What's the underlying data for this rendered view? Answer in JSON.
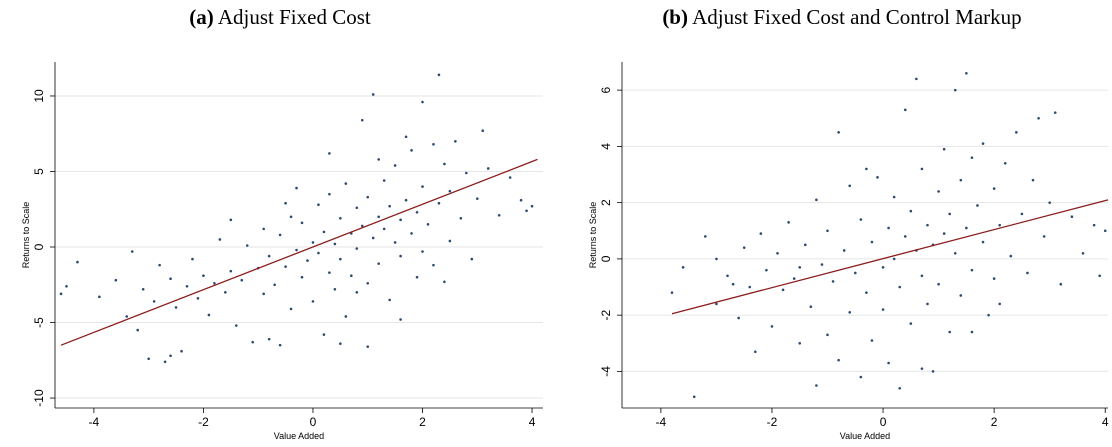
{
  "chart_data": [
    {
      "type": "scatter",
      "panel_label": "(a)",
      "title": "Adjust Fixed Cost",
      "x_label": "Value Added",
      "y_label": "Returns to Scale",
      "xlim": [
        -4.71,
        4.2
      ],
      "ylim": [
        -10.66,
        12.25
      ],
      "xticks": [
        -4,
        -2,
        0,
        2,
        4
      ],
      "yticks": [
        -10,
        -5,
        0,
        5,
        10
      ],
      "grid": true,
      "color": "#2c4a70",
      "x": [
        -4.6,
        -4.5,
        -4.3,
        -3.9,
        -3.6,
        -3.4,
        -3.2,
        -3.1,
        -3.0,
        -2.9,
        -2.8,
        -2.7,
        -2.6,
        -2.5,
        -2.4,
        -2.3,
        -2.2,
        -2.1,
        -2.0,
        -1.9,
        -1.8,
        -1.7,
        -1.6,
        -1.5,
        -1.4,
        -1.3,
        -1.2,
        -1.1,
        -1.0,
        -0.9,
        -0.9,
        -0.8,
        -0.7,
        -0.6,
        -0.6,
        -0.5,
        -0.4,
        -0.4,
        -0.3,
        -0.2,
        -0.2,
        -0.1,
        0.0,
        0.0,
        0.1,
        0.1,
        0.2,
        0.2,
        0.3,
        0.3,
        0.4,
        0.4,
        0.5,
        0.5,
        0.6,
        0.6,
        0.7,
        0.7,
        0.8,
        0.8,
        0.9,
        0.9,
        1.0,
        1.0,
        1.1,
        1.1,
        1.2,
        1.2,
        1.3,
        1.3,
        1.4,
        1.4,
        1.5,
        1.5,
        1.6,
        1.6,
        1.7,
        1.8,
        1.8,
        1.9,
        1.9,
        2.0,
        2.0,
        2.1,
        2.2,
        2.2,
        2.3,
        2.3,
        2.4,
        2.5,
        2.5,
        2.6,
        2.7,
        2.8,
        2.9,
        3.0,
        3.1,
        3.2,
        3.4,
        3.6,
        3.8,
        3.9,
        4.0,
        1.0,
        -0.8,
        0.5,
        1.6,
        -2.6,
        0.3,
        -0.3,
        1.2,
        2.0,
        -1.5,
        -3.3,
        0.8,
        -0.5,
        1.7,
        2.4
      ],
      "y": [
        -3.1,
        -2.6,
        -1.0,
        -3.3,
        -2.2,
        -4.6,
        -5.5,
        -2.8,
        -7.4,
        -3.6,
        -1.2,
        -7.6,
        -2.1,
        -4.0,
        -6.9,
        -2.6,
        -0.8,
        -3.4,
        -1.9,
        -4.5,
        -2.4,
        0.5,
        -3.0,
        -1.6,
        -5.2,
        -2.2,
        0.1,
        -6.3,
        -1.4,
        -3.1,
        1.2,
        -0.6,
        -2.5,
        -6.5,
        0.8,
        -1.3,
        -4.1,
        2.0,
        -0.2,
        -2.0,
        1.6,
        -0.9,
        0.3,
        -3.6,
        2.8,
        -0.4,
        -5.8,
        1.0,
        -1.7,
        3.5,
        0.2,
        -2.8,
        1.9,
        -0.8,
        4.2,
        -4.6,
        0.9,
        -1.9,
        2.6,
        -0.1,
        8.4,
        1.4,
        -2.4,
        3.3,
        0.6,
        10.1,
        2.0,
        -1.1,
        4.4,
        1.2,
        -3.5,
        2.7,
        0.3,
        5.4,
        1.8,
        -0.6,
        3.1,
        6.4,
        0.9,
        2.3,
        -2.0,
        4.0,
        9.6,
        1.5,
        6.8,
        -1.2,
        2.9,
        11.4,
        5.5,
        0.4,
        3.7,
        7.0,
        1.9,
        4.9,
        -0.8,
        3.2,
        7.7,
        5.2,
        2.1,
        4.6,
        3.1,
        2.4,
        2.7,
        -6.6,
        -6.1,
        -6.4,
        -4.8,
        -7.2,
        6.2,
        3.9,
        5.8,
        -0.3,
        1.8,
        -0.3,
        -3.0,
        2.9,
        7.3,
        -2.3
      ],
      "fit": {
        "color": "#8b1c1c",
        "x": [
          -4.6,
          4.1
        ],
        "y": [
          -6.5,
          5.8
        ]
      }
    },
    {
      "type": "scatter",
      "panel_label": "(b)",
      "title": "Adjust Fixed Cost and Control Markup",
      "x_label": "Value Added",
      "y_label": "Returns to Scale",
      "xlim": [
        -4.7,
        4.05
      ],
      "ylim": [
        -5.3,
        7.0
      ],
      "xticks": [
        -4,
        -2,
        0,
        2,
        4
      ],
      "yticks": [
        -4,
        -2,
        0,
        2,
        4,
        6
      ],
      "grid": true,
      "color": "#2c4a70",
      "x": [
        -3.8,
        -3.6,
        -3.4,
        -3.2,
        -3.0,
        -2.8,
        -2.6,
        -2.5,
        -2.4,
        -2.3,
        -2.2,
        -2.1,
        -2.0,
        -1.9,
        -1.8,
        -1.7,
        -1.6,
        -1.5,
        -1.4,
        -1.3,
        -1.2,
        -1.2,
        -1.1,
        -1.0,
        -1.0,
        -0.9,
        -0.8,
        -0.8,
        -0.7,
        -0.6,
        -0.6,
        -0.5,
        -0.4,
        -0.4,
        -0.3,
        -0.2,
        -0.2,
        -0.1,
        0.0,
        0.0,
        0.1,
        0.1,
        0.2,
        0.2,
        0.3,
        0.3,
        0.4,
        0.4,
        0.5,
        0.5,
        0.6,
        0.6,
        0.7,
        0.7,
        0.8,
        0.8,
        0.9,
        0.9,
        1.0,
        1.0,
        1.1,
        1.1,
        1.2,
        1.2,
        1.3,
        1.3,
        1.4,
        1.4,
        1.5,
        1.5,
        1.6,
        1.6,
        1.7,
        1.8,
        1.8,
        1.9,
        2.0,
        2.0,
        2.1,
        2.2,
        2.3,
        2.4,
        2.5,
        2.6,
        2.7,
        2.8,
        2.9,
        3.0,
        3.1,
        3.2,
        3.4,
        3.6,
        3.8,
        3.9,
        4.0,
        -3.0,
        -2.7,
        -1.5,
        0.7,
        1.6,
        -0.3,
        2.1
      ],
      "y": [
        -1.2,
        -0.3,
        -4.9,
        0.8,
        -1.6,
        -0.6,
        -2.1,
        0.4,
        -1.0,
        -3.3,
        0.9,
        -0.4,
        -2.4,
        0.2,
        -1.1,
        1.3,
        -0.7,
        -3.0,
        0.5,
        -1.7,
        -4.5,
        2.1,
        -0.2,
        -2.7,
        1.0,
        -0.8,
        4.5,
        -3.6,
        0.3,
        -1.9,
        2.6,
        -0.5,
        -4.2,
        1.4,
        -1.2,
        0.6,
        -2.9,
        2.9,
        -0.3,
        -1.8,
        1.1,
        -3.7,
        0.0,
        2.2,
        -1.0,
        -4.6,
        0.8,
        5.3,
        -2.3,
        1.7,
        0.3,
        6.4,
        -0.6,
        3.2,
        -1.6,
        1.2,
        -4.0,
        0.5,
        2.4,
        -0.9,
        3.9,
        0.9,
        -2.6,
        1.6,
        0.2,
        6.0,
        2.8,
        -1.3,
        1.1,
        6.6,
        3.6,
        -0.4,
        1.9,
        4.1,
        0.6,
        -2.0,
        2.5,
        -0.7,
        1.2,
        3.4,
        0.1,
        4.5,
        1.6,
        -0.5,
        2.8,
        5.0,
        0.8,
        2.0,
        5.2,
        -0.9,
        1.5,
        0.2,
        1.2,
        -0.6,
        1.0,
        0.0,
        -0.9,
        -0.3,
        -3.9,
        -2.6,
        3.2,
        -1.6
      ],
      "fit": {
        "color": "#8b1c1c",
        "x": [
          -3.8,
          4.05
        ],
        "y": [
          -1.95,
          2.1
        ]
      }
    }
  ]
}
